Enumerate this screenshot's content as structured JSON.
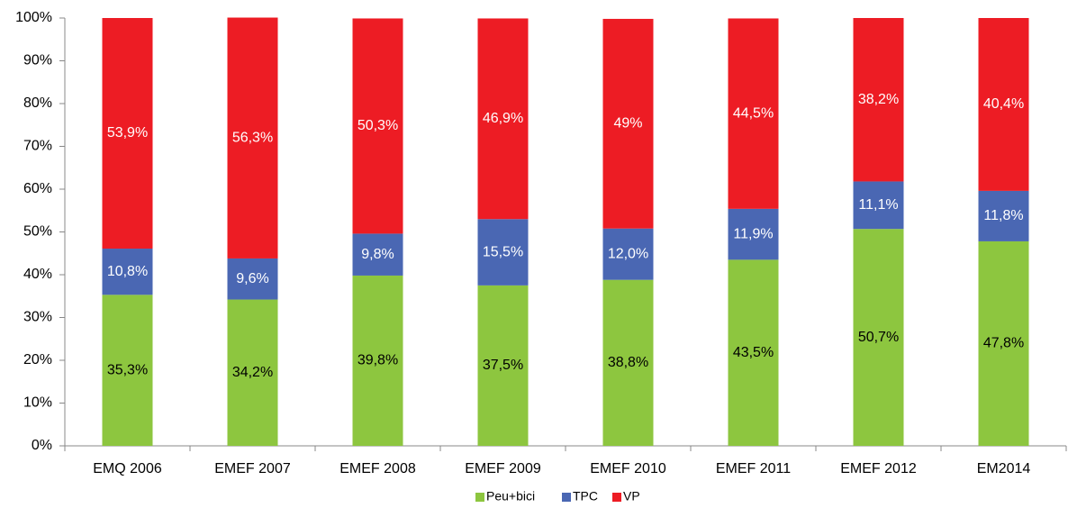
{
  "chart_data": {
    "type": "stacked_bar",
    "categories": [
      "EMQ 2006",
      "EMEF 2007",
      "EMEF 2008",
      "EMEF 2009",
      "EMEF 2010",
      "EMEF 2011",
      "EMEF 2012",
      "EM2014"
    ],
    "series": [
      {
        "name": "Peu+bici",
        "color": "#8dc63f",
        "values": [
          35.3,
          34.2,
          39.8,
          37.5,
          38.8,
          43.5,
          50.7,
          47.8
        ],
        "value_labels": [
          "35,3%",
          "34,2%",
          "39,8%",
          "37,5%",
          "38,8%",
          "43,5%",
          "50,7%",
          "47,8%"
        ]
      },
      {
        "name": "TPC",
        "color": "#4a67b3",
        "values": [
          10.8,
          9.6,
          9.8,
          15.5,
          12.0,
          11.9,
          11.1,
          11.8
        ],
        "value_labels": [
          "10,8%",
          "9,6%",
          "9,8%",
          "15,5%",
          "12,0%",
          "11,9%",
          "11,1%",
          "11,8%"
        ]
      },
      {
        "name": "VP",
        "color": "#ed1c24",
        "values": [
          53.9,
          56.3,
          50.3,
          46.9,
          49,
          44.5,
          38.2,
          40.4
        ],
        "value_labels": [
          "53,9%",
          "56,3%",
          "50,3%",
          "46,9%",
          "49%",
          "44,5%",
          "38,2%",
          "40,4%"
        ]
      }
    ],
    "ylim": [
      0,
      100
    ],
    "yticks": [
      {
        "value": 0,
        "label": "0%"
      },
      {
        "value": 10,
        "label": "10%"
      },
      {
        "value": 20,
        "label": "20%"
      },
      {
        "value": 30,
        "label": "30%"
      },
      {
        "value": 40,
        "label": "40%"
      },
      {
        "value": 50,
        "label": "50%"
      },
      {
        "value": 60,
        "label": "60%"
      },
      {
        "value": 70,
        "label": "70%"
      },
      {
        "value": 80,
        "label": "80%"
      },
      {
        "value": 90,
        "label": "90%"
      },
      {
        "value": 100,
        "label": "100%"
      }
    ],
    "grid": false,
    "legend": "bottom"
  }
}
